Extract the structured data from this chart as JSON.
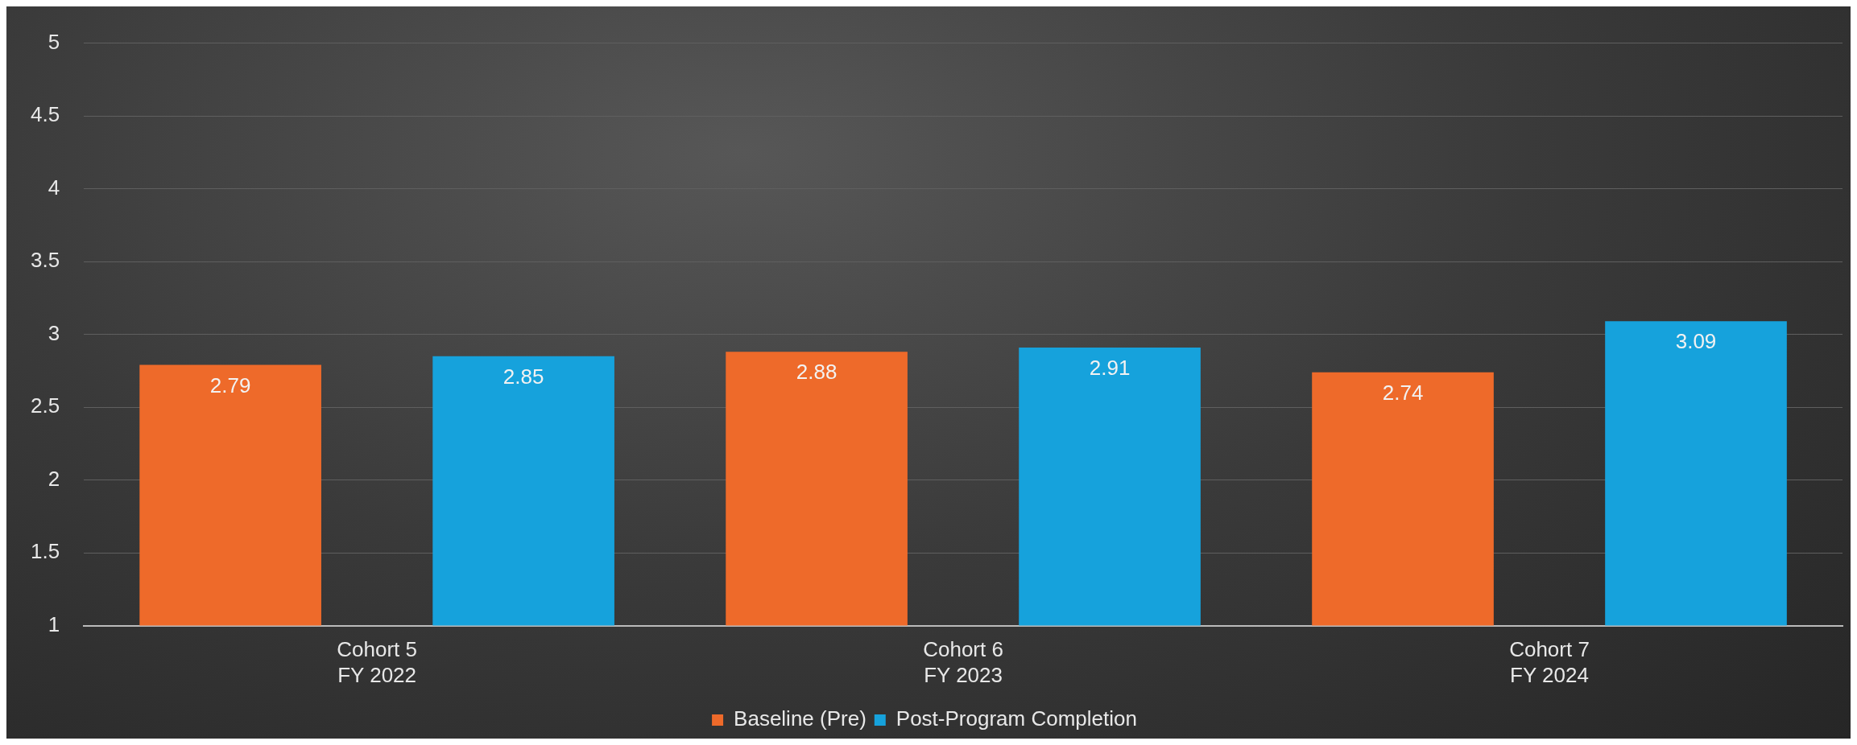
{
  "chart_data": {
    "type": "bar",
    "categories": [
      "Cohort 5\nFY 2022",
      "Cohort 6\nFY 2023",
      "Cohort 7\nFY 2024"
    ],
    "series": [
      {
        "name": "Baseline (Pre)",
        "color": "#ee6a2a",
        "values": [
          2.79,
          2.88,
          2.74
        ]
      },
      {
        "name": "Post-Program Completion",
        "color": "#16a2dc",
        "values": [
          2.85,
          2.91,
          3.09
        ]
      }
    ],
    "ylim": [
      1,
      5
    ],
    "yticks": [
      1,
      1.5,
      2,
      2.5,
      3,
      3.5,
      4,
      4.5,
      5
    ],
    "grid": "y",
    "legend": "bottom",
    "data_labels": true
  }
}
